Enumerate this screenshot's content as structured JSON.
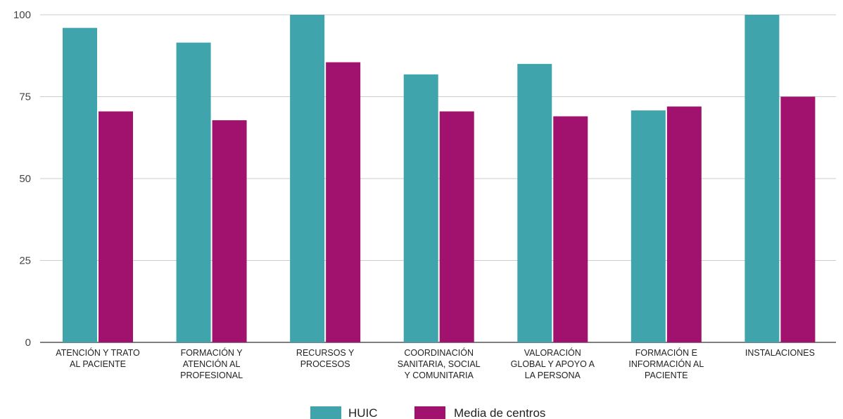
{
  "chart_data": {
    "type": "bar",
    "categories": [
      [
        "ATENCIÓN Y TRATO",
        "AL PACIENTE"
      ],
      [
        "FORMACIÓN Y",
        "ATENCIÓN AL",
        "PROFESIONAL"
      ],
      [
        "RECURSOS Y",
        "PROCESOS"
      ],
      [
        "COORDINACIÓN",
        "SANITARIA, SOCIAL",
        "Y COMUNITARIA"
      ],
      [
        "VALORACIÓN",
        "GLOBAL Y APOYO A",
        "LA PERSONA"
      ],
      [
        "FORMACIÓN E",
        "INFORMACIÓN AL",
        "PACIENTE"
      ],
      [
        "INSTALACIONES"
      ]
    ],
    "series": [
      {
        "name": "HUIC",
        "color": "#40a4ad",
        "values": [
          96,
          91.5,
          100,
          81.8,
          85,
          70.8,
          100
        ]
      },
      {
        "name": "Media de centros",
        "color": "#a0126e",
        "values": [
          70.5,
          67.8,
          85.5,
          70.5,
          69,
          72,
          75
        ]
      }
    ],
    "ylim": [
      0,
      100
    ],
    "yticks": [
      0,
      25,
      50,
      75,
      100
    ],
    "grid": true,
    "legend": "bottom-center"
  }
}
